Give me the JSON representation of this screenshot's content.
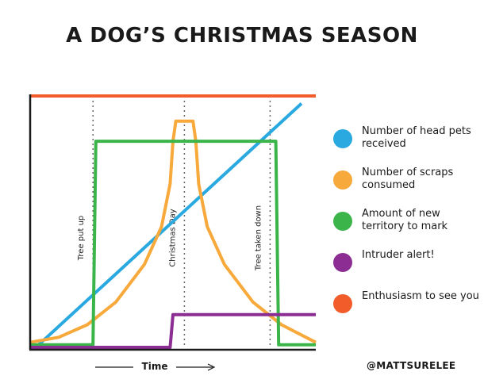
{
  "chart_data": {
    "type": "line",
    "title": "A DOG’S CHRISTMAS SEASON",
    "xlabel": "Time",
    "ylabel": "",
    "x_range": [
      0,
      100
    ],
    "y_range": [
      0,
      100
    ],
    "grid": false,
    "legend_position": "right",
    "markers": [
      {
        "label": "Tree put up",
        "x": 22
      },
      {
        "label": "Christmas Day",
        "x": 54
      },
      {
        "label": "Tree taken down",
        "x": 84
      }
    ],
    "series": [
      {
        "name": "Number of head pets received",
        "color": "#2AA9E0",
        "points": [
          [
            2,
            0
          ],
          [
            95,
            97
          ]
        ]
      },
      {
        "name": "Number of scraps consumed",
        "color": "#F7A93B",
        "points": [
          [
            0,
            2
          ],
          [
            10,
            4
          ],
          [
            20,
            9
          ],
          [
            30,
            18
          ],
          [
            40,
            33
          ],
          [
            46,
            48
          ],
          [
            49,
            65
          ],
          [
            50,
            82
          ],
          [
            51,
            90
          ],
          [
            57,
            90
          ],
          [
            58,
            82
          ],
          [
            59,
            65
          ],
          [
            62,
            48
          ],
          [
            68,
            33
          ],
          [
            78,
            18
          ],
          [
            88,
            9
          ],
          [
            100,
            2
          ]
        ]
      },
      {
        "name": "Amount of new territory to mark",
        "color": "#3BB54A",
        "points": [
          [
            0,
            1
          ],
          [
            22,
            1
          ],
          [
            23,
            82
          ],
          [
            86,
            82
          ],
          [
            87,
            1
          ],
          [
            100,
            1
          ]
        ]
      },
      {
        "name": "Intruder alert!",
        "color": "#8B2D92",
        "points": [
          [
            0,
            0
          ],
          [
            49,
            0
          ],
          [
            50,
            13
          ],
          [
            100,
            13
          ]
        ]
      },
      {
        "name": "Enthusiasm to see you",
        "color": "#F25C2A",
        "points": [
          [
            0,
            100
          ],
          [
            100,
            100
          ]
        ]
      }
    ]
  },
  "legend": {
    "items": [
      {
        "label": "Number of head pets received",
        "color": "#2AA9E0"
      },
      {
        "label": "Number of scraps consumed",
        "color": "#F7A93B"
      },
      {
        "label": "Amount of new territory to mark",
        "color": "#3BB54A"
      },
      {
        "label": "Intruder alert!",
        "color": "#8B2D92"
      },
      {
        "label": "Enthusiasm to see you",
        "color": "#F25C2A"
      }
    ]
  },
  "credit": "@MATTSURELEE"
}
